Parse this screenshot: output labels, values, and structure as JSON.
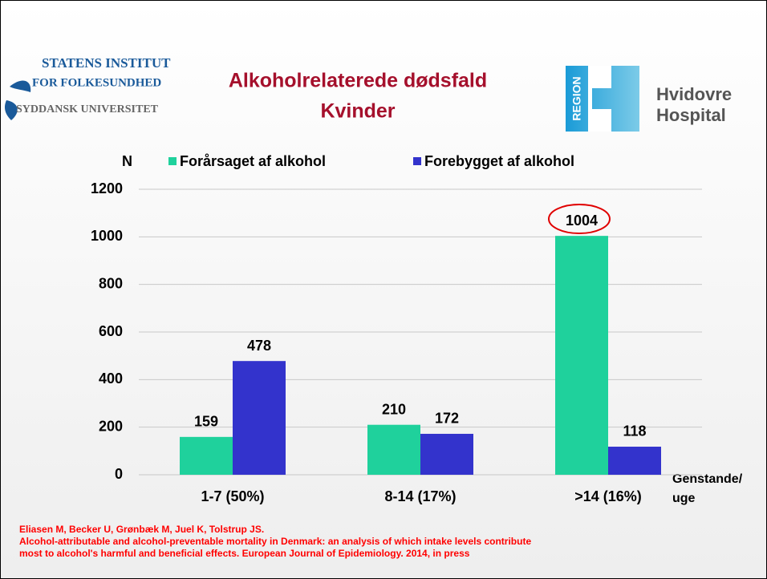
{
  "logos": {
    "institute": [
      "STATENS INSTITUT",
      "FOR FOLKESUNDHED",
      "SYDDANSK UNIVERSITET"
    ],
    "region": "REGION",
    "hospital": [
      "Hvidovre",
      "Hospital"
    ]
  },
  "chart_data": {
    "type": "bar",
    "title": [
      "Alkoholrelaterede dødsfald",
      "Kvinder"
    ],
    "y_label": "N",
    "x_label": [
      "Genstande/",
      "uge"
    ],
    "categories": [
      "1-7 (50%)",
      "8-14 (17%)",
      ">14 (16%)"
    ],
    "series": [
      {
        "name": "Forårsaget af alkohol",
        "color": "#1fd19c",
        "values": [
          159,
          210,
          1004
        ]
      },
      {
        "name": "Forebygget af alkohol",
        "color": "#3333cc",
        "values": [
          478,
          172,
          118
        ]
      }
    ],
    "ylim": [
      0,
      1200
    ],
    "yticks": [
      0,
      200,
      400,
      600,
      800,
      1000,
      1200
    ],
    "grid": true,
    "legend": "top"
  },
  "citation": [
    "Eliasen M, Becker U, Grønbæk M, Juel K, Tolstrup JS.",
    "Alcohol-attributable and alcohol-preventable mortality in Denmark: an analysis of which intake levels contribute",
    "most to alcohol's harmful and beneficial effects. European Journal of Epidemiology. 2014, in press"
  ]
}
